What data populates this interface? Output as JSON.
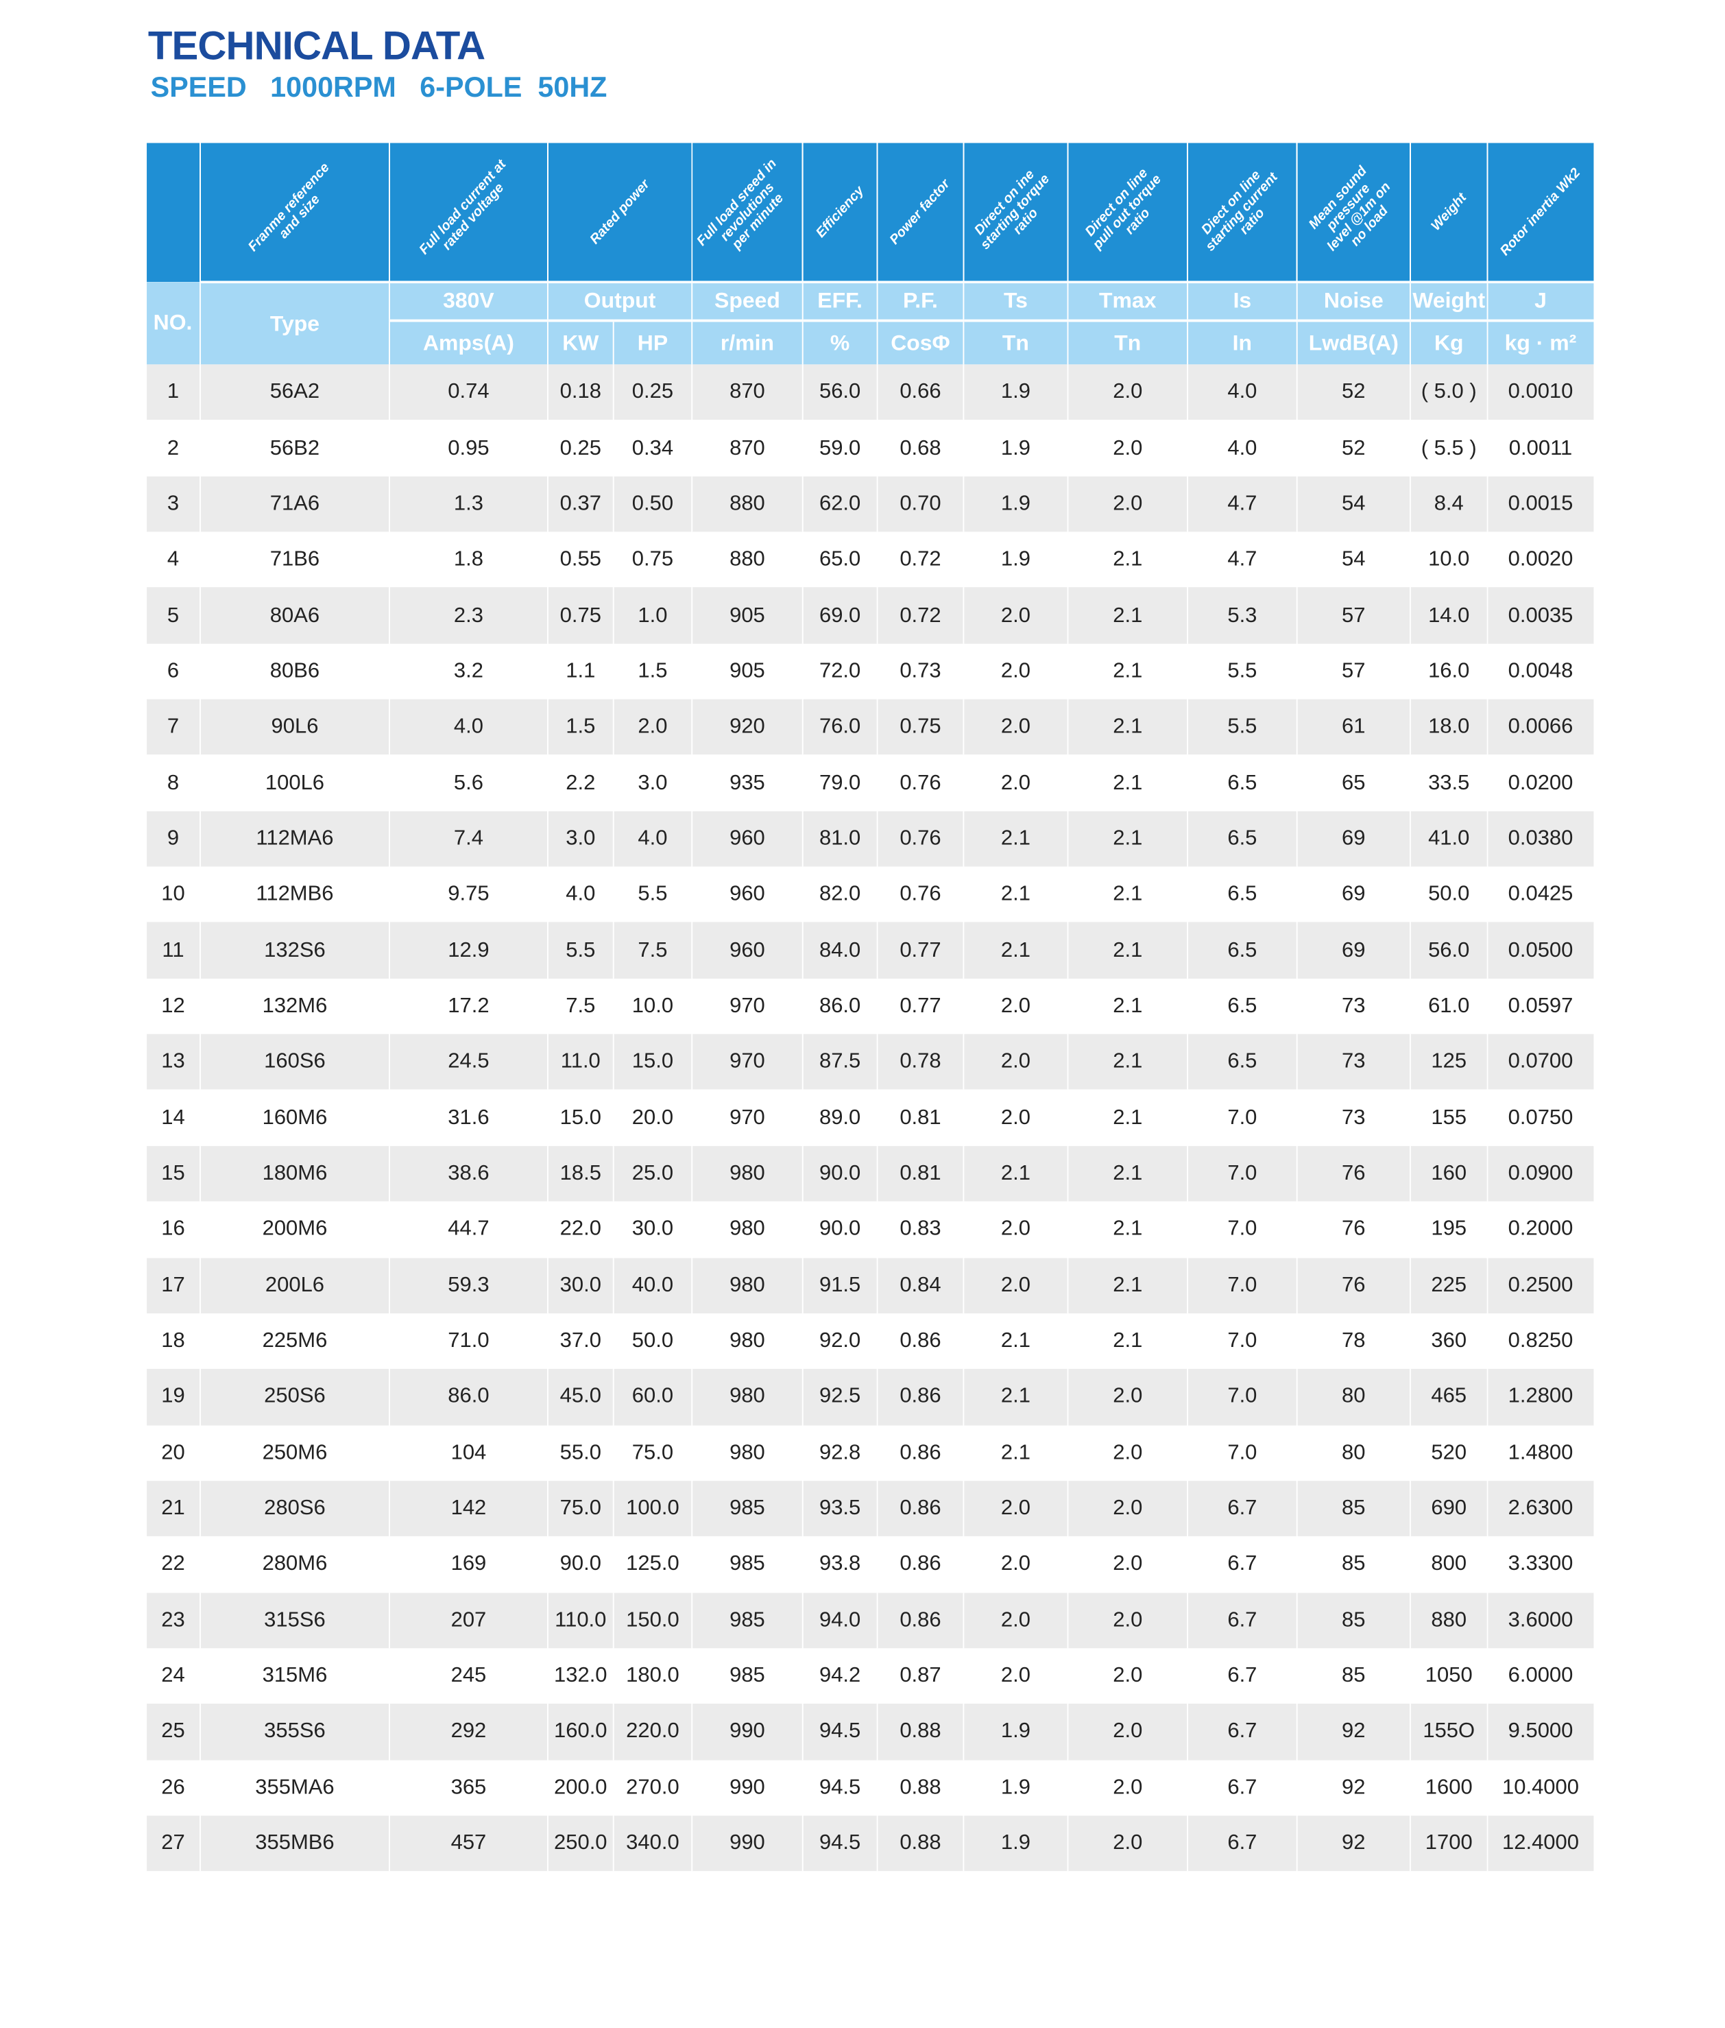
{
  "title": "TECHNICAL DATA",
  "subtitle": "SPEED   1000RPM   6-POLE  50HZ",
  "colors": {
    "header_dark": "#1f8fd4",
    "header_light": "#a5d8f5",
    "title": "#1b4c9e",
    "subtitle": "#2a90d2"
  },
  "header": {
    "desc": [
      "",
      "Franme reference\nand size",
      "Full load current at\nrated voltage",
      "Rated power",
      "Full load sreed in\nrevolutions\nper minute",
      "Efficiency",
      "Power factor",
      "Direct on ine\nstarting torque\nratio",
      "Direct on line\npull out torque\nratio",
      "Diect on line\nstarting current\nratio",
      "Mean sound\npressure\nlevel @1m on\nno load",
      "Weight",
      "Rotor inertia Wk2"
    ],
    "no": "NO.",
    "type": "Type",
    "top": [
      "380V",
      "Output",
      "Speed",
      "EFF.",
      "P.F.",
      "Ts",
      "Tmax",
      "Is",
      "Noise",
      "Weight",
      "J"
    ],
    "units": [
      "Amps(A)",
      "KW",
      "HP",
      "r/min",
      "%",
      "CosΦ",
      "Tn",
      "Tn",
      "In",
      "LwdB(A)",
      "Kg",
      "kg · m²"
    ]
  },
  "rows": [
    [
      "1",
      "56A2",
      "0.74",
      "0.18",
      "0.25",
      "870",
      "56.0",
      "0.66",
      "1.9",
      "2.0",
      "4.0",
      "52",
      "( 5.0 )",
      "0.0010"
    ],
    [
      "2",
      "56B2",
      "0.95",
      "0.25",
      "0.34",
      "870",
      "59.0",
      "0.68",
      "1.9",
      "2.0",
      "4.0",
      "52",
      "( 5.5 )",
      "0.0011"
    ],
    [
      "3",
      "71A6",
      "1.3",
      "0.37",
      "0.50",
      "880",
      "62.0",
      "0.70",
      "1.9",
      "2.0",
      "4.7",
      "54",
      "8.4",
      "0.0015"
    ],
    [
      "4",
      "71B6",
      "1.8",
      "0.55",
      "0.75",
      "880",
      "65.0",
      "0.72",
      "1.9",
      "2.1",
      "4.7",
      "54",
      "10.0",
      "0.0020"
    ],
    [
      "5",
      "80A6",
      "2.3",
      "0.75",
      "1.0",
      "905",
      "69.0",
      "0.72",
      "2.0",
      "2.1",
      "5.3",
      "57",
      "14.0",
      "0.0035"
    ],
    [
      "6",
      "80B6",
      "3.2",
      "1.1",
      "1.5",
      "905",
      "72.0",
      "0.73",
      "2.0",
      "2.1",
      "5.5",
      "57",
      "16.0",
      "0.0048"
    ],
    [
      "7",
      "90L6",
      "4.0",
      "1.5",
      "2.0",
      "920",
      "76.0",
      "0.75",
      "2.0",
      "2.1",
      "5.5",
      "61",
      "18.0",
      "0.0066"
    ],
    [
      "8",
      "100L6",
      "5.6",
      "2.2",
      "3.0",
      "935",
      "79.0",
      "0.76",
      "2.0",
      "2.1",
      "6.5",
      "65",
      "33.5",
      "0.0200"
    ],
    [
      "9",
      "112MA6",
      "7.4",
      "3.0",
      "4.0",
      "960",
      "81.0",
      "0.76",
      "2.1",
      "2.1",
      "6.5",
      "69",
      "41.0",
      "0.0380"
    ],
    [
      "10",
      "112MB6",
      "9.75",
      "4.0",
      "5.5",
      "960",
      "82.0",
      "0.76",
      "2.1",
      "2.1",
      "6.5",
      "69",
      "50.0",
      "0.0425"
    ],
    [
      "11",
      "132S6",
      "12.9",
      "5.5",
      "7.5",
      "960",
      "84.0",
      "0.77",
      "2.1",
      "2.1",
      "6.5",
      "69",
      "56.0",
      "0.0500"
    ],
    [
      "12",
      "132M6",
      "17.2",
      "7.5",
      "10.0",
      "970",
      "86.0",
      "0.77",
      "2.0",
      "2.1",
      "6.5",
      "73",
      "61.0",
      "0.0597"
    ],
    [
      "13",
      "160S6",
      "24.5",
      "11.0",
      "15.0",
      "970",
      "87.5",
      "0.78",
      "2.0",
      "2.1",
      "6.5",
      "73",
      "125",
      "0.0700"
    ],
    [
      "14",
      "160M6",
      "31.6",
      "15.0",
      "20.0",
      "970",
      "89.0",
      "0.81",
      "2.0",
      "2.1",
      "7.0",
      "73",
      "155",
      "0.0750"
    ],
    [
      "15",
      "180M6",
      "38.6",
      "18.5",
      "25.0",
      "980",
      "90.0",
      "0.81",
      "2.1",
      "2.1",
      "7.0",
      "76",
      "160",
      "0.0900"
    ],
    [
      "16",
      "200M6",
      "44.7",
      "22.0",
      "30.0",
      "980",
      "90.0",
      "0.83",
      "2.0",
      "2.1",
      "7.0",
      "76",
      "195",
      "0.2000"
    ],
    [
      "17",
      "200L6",
      "59.3",
      "30.0",
      "40.0",
      "980",
      "91.5",
      "0.84",
      "2.0",
      "2.1",
      "7.0",
      "76",
      "225",
      "0.2500"
    ],
    [
      "18",
      "225M6",
      "71.0",
      "37.0",
      "50.0",
      "980",
      "92.0",
      "0.86",
      "2.1",
      "2.1",
      "7.0",
      "78",
      "360",
      "0.8250"
    ],
    [
      "19",
      "250S6",
      "86.0",
      "45.0",
      "60.0",
      "980",
      "92.5",
      "0.86",
      "2.1",
      "2.0",
      "7.0",
      "80",
      "465",
      "1.2800"
    ],
    [
      "20",
      "250M6",
      "104",
      "55.0",
      "75.0",
      "980",
      "92.8",
      "0.86",
      "2.1",
      "2.0",
      "7.0",
      "80",
      "520",
      "1.4800"
    ],
    [
      "21",
      "280S6",
      "142",
      "75.0",
      "100.0",
      "985",
      "93.5",
      "0.86",
      "2.0",
      "2.0",
      "6.7",
      "85",
      "690",
      "2.6300"
    ],
    [
      "22",
      "280M6",
      "169",
      "90.0",
      "125.0",
      "985",
      "93.8",
      "0.86",
      "2.0",
      "2.0",
      "6.7",
      "85",
      "800",
      "3.3300"
    ],
    [
      "23",
      "315S6",
      "207",
      "110.0",
      "150.0",
      "985",
      "94.0",
      "0.86",
      "2.0",
      "2.0",
      "6.7",
      "85",
      "880",
      "3.6000"
    ],
    [
      "24",
      "315M6",
      "245",
      "132.0",
      "180.0",
      "985",
      "94.2",
      "0.87",
      "2.0",
      "2.0",
      "6.7",
      "85",
      "1050",
      "6.0000"
    ],
    [
      "25",
      "355S6",
      "292",
      "160.0",
      "220.0",
      "990",
      "94.5",
      "0.88",
      "1.9",
      "2.0",
      "6.7",
      "92",
      "155O",
      "9.5000"
    ],
    [
      "26",
      "355MA6",
      "365",
      "200.0",
      "270.0",
      "990",
      "94.5",
      "0.88",
      "1.9",
      "2.0",
      "6.7",
      "92",
      "1600",
      "10.4000"
    ],
    [
      "27",
      "355MB6",
      "457",
      "250.0",
      "340.0",
      "990",
      "94.5",
      "0.88",
      "1.9",
      "2.0",
      "6.7",
      "92",
      "1700",
      "12.4000"
    ]
  ]
}
